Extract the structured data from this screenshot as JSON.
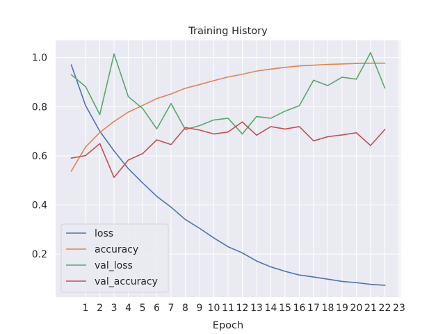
{
  "chart_data": {
    "type": "line",
    "title": "Training History",
    "xlabel": "Epoch",
    "ylabel": "",
    "x": [
      0,
      1,
      2,
      3,
      4,
      5,
      6,
      7,
      8,
      9,
      10,
      11,
      12,
      13,
      14,
      15,
      16,
      17,
      18,
      19,
      20,
      21,
      22
    ],
    "xticks": [
      1,
      2,
      3,
      4,
      5,
      6,
      7,
      8,
      9,
      10,
      11,
      12,
      13,
      14,
      15,
      16,
      17,
      18,
      19,
      20,
      21,
      22,
      23
    ],
    "xlim": [
      -1.1,
      23.1
    ],
    "yticks": [
      0.2,
      0.4,
      0.6,
      0.8,
      1.0
    ],
    "ytick_labels": [
      "0.2",
      "0.4",
      "0.6",
      "0.8",
      "1.0"
    ],
    "ylim": [
      0.025,
      1.07
    ],
    "grid": true,
    "legend_position": "lower-left",
    "series": [
      {
        "name": "loss",
        "color": "#4c72b0",
        "values": [
          0.97,
          0.805,
          0.7,
          0.62,
          0.548,
          0.49,
          0.435,
          0.391,
          0.341,
          0.305,
          0.266,
          0.23,
          0.205,
          0.172,
          0.148,
          0.13,
          0.115,
          0.107,
          0.098,
          0.089,
          0.084,
          0.077,
          0.073
        ]
      },
      {
        "name": "accuracy",
        "color": "#dd8452",
        "values": [
          0.538,
          0.636,
          0.695,
          0.74,
          0.778,
          0.805,
          0.833,
          0.852,
          0.875,
          0.89,
          0.906,
          0.921,
          0.932,
          0.945,
          0.953,
          0.96,
          0.966,
          0.969,
          0.972,
          0.974,
          0.976,
          0.977,
          0.977
        ]
      },
      {
        "name": "val_loss",
        "color": "#55a868",
        "values": [
          0.93,
          0.882,
          0.768,
          1.015,
          0.841,
          0.793,
          0.71,
          0.813,
          0.707,
          0.723,
          0.746,
          0.753,
          0.689,
          0.76,
          0.753,
          0.782,
          0.804,
          0.908,
          0.886,
          0.92,
          0.912,
          1.02,
          0.876
        ]
      },
      {
        "name": "val_accuracy",
        "color": "#c44e52",
        "values": [
          0.591,
          0.601,
          0.65,
          0.512,
          0.583,
          0.609,
          0.665,
          0.646,
          0.715,
          0.705,
          0.689,
          0.697,
          0.738,
          0.684,
          0.719,
          0.709,
          0.719,
          0.661,
          0.678,
          0.685,
          0.694,
          0.642,
          0.707
        ]
      }
    ]
  }
}
